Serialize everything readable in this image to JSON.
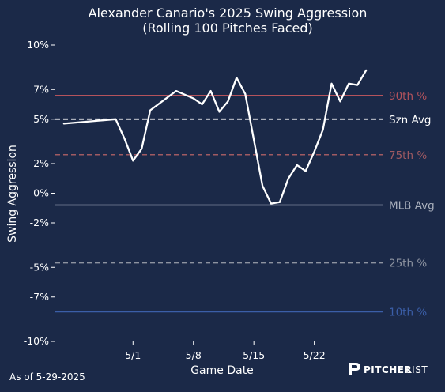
{
  "chart_data": {
    "type": "line",
    "title_line1": "Alexander Canario's 2025 Swing Aggression",
    "title_line2": "(Rolling 100 Pitches Faced)",
    "xlabel": "Game Date",
    "ylabel": "Swing Aggression",
    "ylim": [
      -10,
      10
    ],
    "xlim": [
      "2025-04-22",
      "2025-05-30"
    ],
    "yticks": [
      {
        "value": 10,
        "label": "10%"
      },
      {
        "value": 7,
        "label": "7%"
      },
      {
        "value": 5,
        "label": "5%"
      },
      {
        "value": 2,
        "label": "2%"
      },
      {
        "value": 0,
        "label": "0%"
      },
      {
        "value": -2,
        "label": "-2%"
      },
      {
        "value": -5,
        "label": "-5%"
      },
      {
        "value": -7,
        "label": "-7%"
      },
      {
        "value": -10,
        "label": "-10%"
      }
    ],
    "xticks": [
      {
        "date": "2025-05-01",
        "label": "5/1"
      },
      {
        "date": "2025-05-08",
        "label": "5/8"
      },
      {
        "date": "2025-05-15",
        "label": "5/15"
      },
      {
        "date": "2025-05-22",
        "label": "5/22"
      }
    ],
    "reference_lines": [
      {
        "label": "90th %",
        "value": 6.6,
        "color": "#b5535c",
        "style": "solid"
      },
      {
        "label": "Szn Avg",
        "value": 5.0,
        "color": "#ffffff",
        "style": "dashed"
      },
      {
        "label": "75th %",
        "value": 2.6,
        "color": "#a05a62",
        "style": "dashed"
      },
      {
        "label": "MLB Avg",
        "value": -0.8,
        "color": "#aab0bd",
        "style": "solid"
      },
      {
        "label": "25th %",
        "value": -4.7,
        "color": "#8d93a0",
        "style": "dashed"
      },
      {
        "label": "10th %",
        "value": -8.0,
        "color": "#3b5ea8",
        "style": "solid"
      }
    ],
    "series": [
      {
        "color": "#ffffff",
        "points": [
          {
            "x": "2025-04-23",
            "y": 4.7
          },
          {
            "x": "2025-04-29",
            "y": 5.0
          },
          {
            "x": "2025-04-30",
            "y": 3.7
          },
          {
            "x": "2025-05-01",
            "y": 2.2
          },
          {
            "x": "2025-05-02",
            "y": 3.0
          },
          {
            "x": "2025-05-03",
            "y": 5.6
          },
          {
            "x": "2025-05-06",
            "y": 6.9
          },
          {
            "x": "2025-05-08",
            "y": 6.4
          },
          {
            "x": "2025-05-09",
            "y": 6.0
          },
          {
            "x": "2025-05-10",
            "y": 6.9
          },
          {
            "x": "2025-05-11",
            "y": 5.5
          },
          {
            "x": "2025-05-12",
            "y": 6.2
          },
          {
            "x": "2025-05-13",
            "y": 7.8
          },
          {
            "x": "2025-05-14",
            "y": 6.7
          },
          {
            "x": "2025-05-15",
            "y": 3.6
          },
          {
            "x": "2025-05-16",
            "y": 0.5
          },
          {
            "x": "2025-05-17",
            "y": -0.7
          },
          {
            "x": "2025-05-18",
            "y": -0.6
          },
          {
            "x": "2025-05-19",
            "y": 1.0
          },
          {
            "x": "2025-05-20",
            "y": 1.9
          },
          {
            "x": "2025-05-21",
            "y": 1.5
          },
          {
            "x": "2025-05-22",
            "y": 2.8
          },
          {
            "x": "2025-05-23",
            "y": 4.3
          },
          {
            "x": "2025-05-24",
            "y": 7.4
          },
          {
            "x": "2025-05-25",
            "y": 6.2
          },
          {
            "x": "2025-05-26",
            "y": 7.4
          },
          {
            "x": "2025-05-27",
            "y": 7.3
          },
          {
            "x": "2025-05-28",
            "y": 8.3
          }
        ]
      }
    ]
  },
  "footer": {
    "as_of": "As of 5-29-2025",
    "logo_text_bold": "PITCHER",
    "logo_text_light": "LIST"
  }
}
